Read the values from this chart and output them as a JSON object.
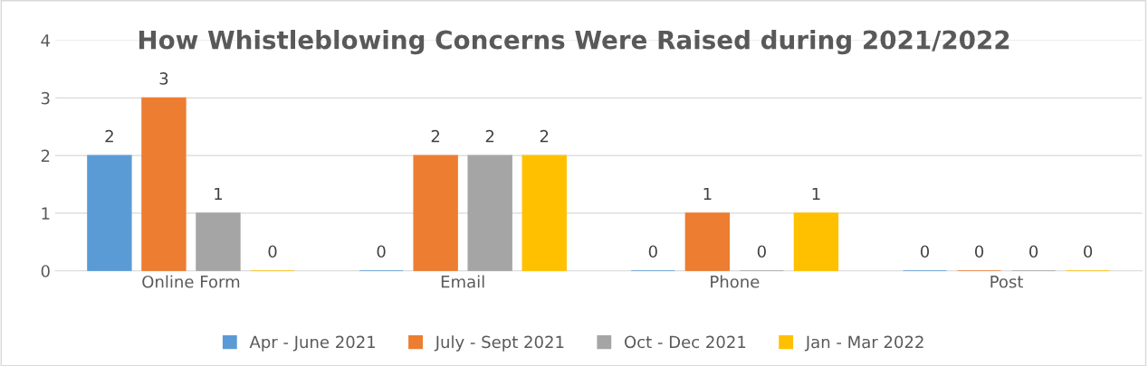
{
  "chart_data": {
    "type": "bar",
    "title": "How Whistleblowing Concerns Were Raised during 2021/2022",
    "categories": [
      "Online Form",
      "Email",
      "Phone",
      "Post"
    ],
    "series": [
      {
        "name": "Apr - June 2021",
        "color": "#5b9bd5",
        "values": [
          2,
          0,
          0,
          0
        ]
      },
      {
        "name": "July - Sept 2021",
        "color": "#ed7d31",
        "values": [
          3,
          2,
          1,
          0
        ]
      },
      {
        "name": "Oct - Dec 2021",
        "color": "#a5a5a5",
        "values": [
          1,
          2,
          0,
          0
        ]
      },
      {
        "name": "Jan - Mar 2022",
        "color": "#ffc000",
        "values": [
          0,
          2,
          1,
          0
        ]
      }
    ],
    "ylim": [
      0,
      4
    ],
    "yticks": [
      0,
      1,
      2,
      3,
      4
    ],
    "grid": "y",
    "legend": "bottom",
    "data_labels": true
  }
}
